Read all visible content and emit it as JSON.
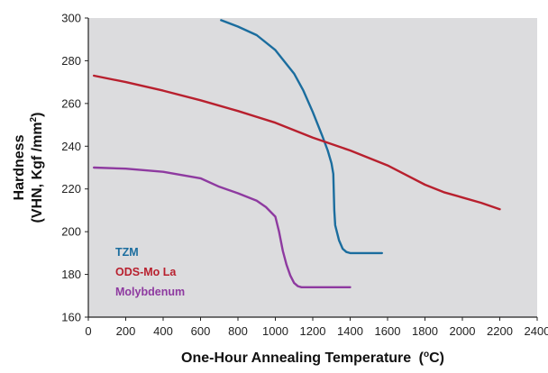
{
  "chart_data": {
    "type": "line",
    "xlabel": "One-Hour Annealing Temperature",
    "xlabel_unit_pre": "(",
    "xlabel_unit_sup": "o",
    "xlabel_unit_post": "C)",
    "ylabel_line1": "Hardness",
    "ylabel_line2_pre": "(VHN, Kgf /mm",
    "ylabel_line2_sup": "2",
    "ylabel_line2_post": ")",
    "xlim": [
      0,
      2400
    ],
    "ylim": [
      160,
      300
    ],
    "xticks": [
      0,
      200,
      400,
      600,
      800,
      1000,
      1200,
      1400,
      1600,
      1800,
      2000,
      2200,
      2400
    ],
    "yticks": [
      160,
      180,
      200,
      220,
      240,
      260,
      280,
      300
    ],
    "grid": false,
    "plot_background": "#dcdcde",
    "legend_position": "bottom-left",
    "series": [
      {
        "name": "TZM",
        "color": "#1b6d9e",
        "x": [
          710,
          800,
          900,
          1000,
          1100,
          1150,
          1200,
          1250,
          1280,
          1300,
          1310,
          1315,
          1320,
          1340,
          1360,
          1380,
          1400,
          1450,
          1570
        ],
        "y": [
          299,
          296,
          292,
          285,
          274,
          266,
          256,
          245,
          238,
          232,
          227,
          210,
          203,
          196,
          192,
          190.5,
          190,
          190,
          190
        ]
      },
      {
        "name": "ODS-Mo La",
        "color": "#b8202e",
        "x": [
          30,
          200,
          400,
          600,
          800,
          1000,
          1200,
          1400,
          1600,
          1700,
          1800,
          1900,
          2000,
          2100,
          2200
        ],
        "y": [
          273,
          270,
          266,
          261.5,
          256.5,
          251,
          244,
          238,
          231,
          226.5,
          222,
          218.5,
          216,
          213.5,
          210.5
        ]
      },
      {
        "name": "Molybdenum",
        "color": "#8e3aa0",
        "x": [
          30,
          200,
          400,
          600,
          700,
          800,
          900,
          950,
          1000,
          1020,
          1040,
          1060,
          1080,
          1100,
          1120,
          1140,
          1160,
          1200,
          1300,
          1400
        ],
        "y": [
          230,
          229.5,
          228,
          225,
          221,
          218,
          214.5,
          211.5,
          207,
          200,
          191,
          184.5,
          179.5,
          176,
          174.5,
          174,
          174,
          174,
          174,
          174
        ]
      }
    ]
  }
}
